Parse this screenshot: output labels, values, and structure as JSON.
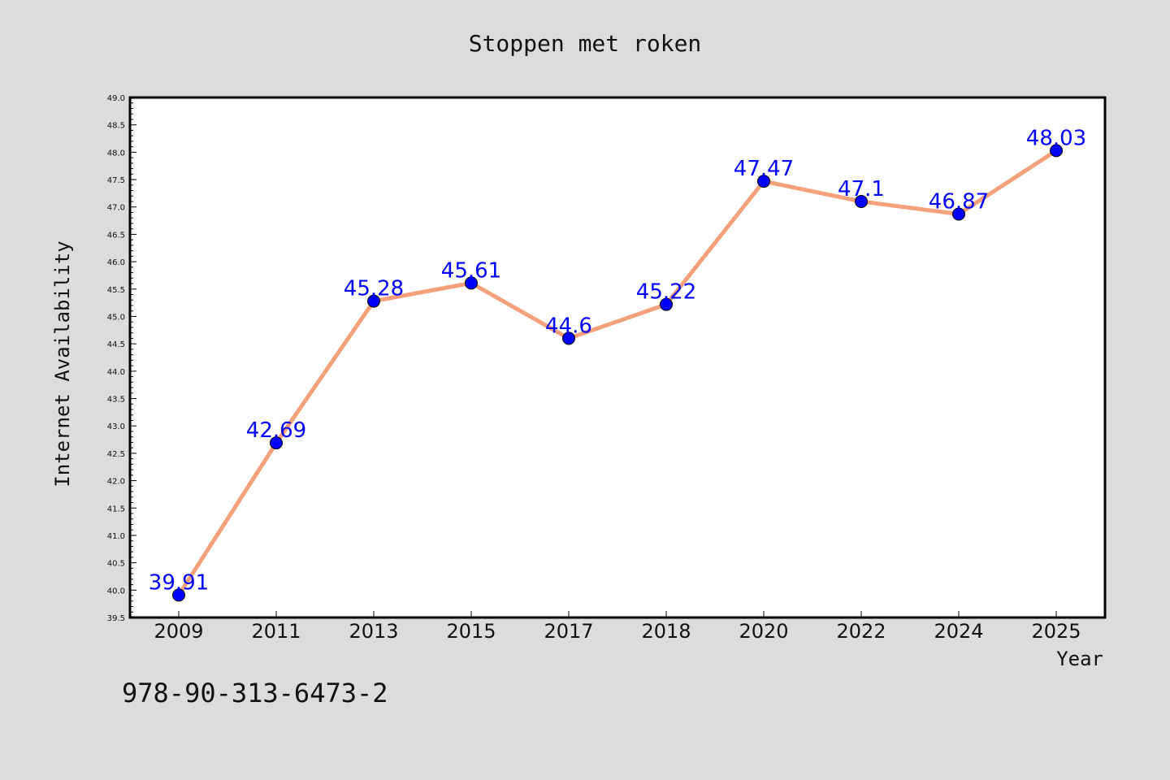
{
  "chart_data": {
    "type": "line",
    "title": "Stoppen met roken",
    "xlabel": "Year",
    "ylabel": "Internet Availability",
    "categories": [
      "2009",
      "2011",
      "2013",
      "2015",
      "2017",
      "2018",
      "2020",
      "2022",
      "2024",
      "2025"
    ],
    "series": [
      {
        "values": [
          39.91,
          42.69,
          45.28,
          45.61,
          44.6,
          45.22,
          47.47,
          47.1,
          46.87,
          48.03
        ],
        "labels": [
          "39.91",
          "42.69",
          "45.28",
          "45.61",
          "44.6",
          "45.22",
          "47.47",
          "47.1",
          "46.87",
          "48.03"
        ],
        "line_color": "#f4a07a",
        "marker_color": "#0000ff"
      }
    ],
    "ylim": [
      39.5,
      49.0
    ],
    "yticks": [
      "39.5",
      "40.0",
      "40.5",
      "41.0",
      "41.5",
      "42.0",
      "42.5",
      "43.0",
      "43.5",
      "44.0",
      "44.5",
      "45.0",
      "45.5",
      "46.0",
      "46.5",
      "47.0",
      "47.5",
      "48.0",
      "48.5",
      "49.0"
    ],
    "grid": false,
    "legend": "none"
  },
  "footnote": "978-90-313-6473-2",
  "colors": {
    "background": "#dcdcdc",
    "plot_background": "#ffffff",
    "axis": "#000000",
    "data_label": "#0000ff"
  }
}
